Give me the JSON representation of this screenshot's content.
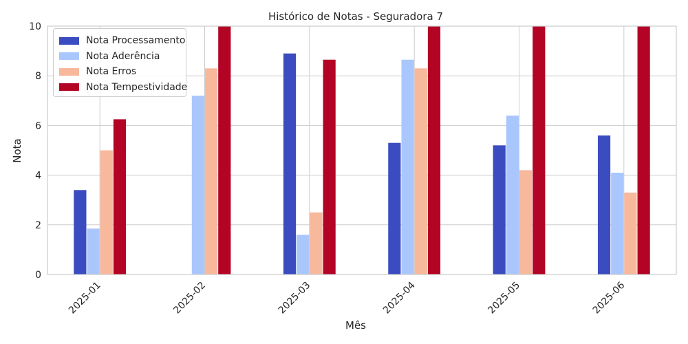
{
  "chart_data": {
    "type": "bar",
    "title": "Histórico de Notas - Seguradora 7",
    "xlabel": "Mês",
    "ylabel": "Nota",
    "ylim": [
      0,
      10
    ],
    "yticks": [
      "0",
      "2",
      "4",
      "6",
      "8",
      "10"
    ],
    "categories": [
      "2025-01",
      "2025-02",
      "2025-03",
      "2025-04",
      "2025-05",
      "2025-06"
    ],
    "grid": true,
    "legend_position": "top-left",
    "series": [
      {
        "name": "Nota Processamento",
        "color": "#3b4cc0",
        "values": [
          3.4,
          0,
          8.9,
          5.3,
          5.2,
          5.6
        ]
      },
      {
        "name": "Nota Aderência",
        "color": "#aac7fd",
        "values": [
          1.85,
          7.2,
          1.6,
          8.65,
          6.4,
          4.1
        ]
      },
      {
        "name": "Nota Erros",
        "color": "#f7b89c",
        "values": [
          5.0,
          8.3,
          2.5,
          8.3,
          4.2,
          3.3
        ]
      },
      {
        "name": "Nota Tempestividade",
        "color": "#b40426",
        "values": [
          6.25,
          10,
          8.65,
          10,
          10,
          10
        ]
      }
    ]
  }
}
